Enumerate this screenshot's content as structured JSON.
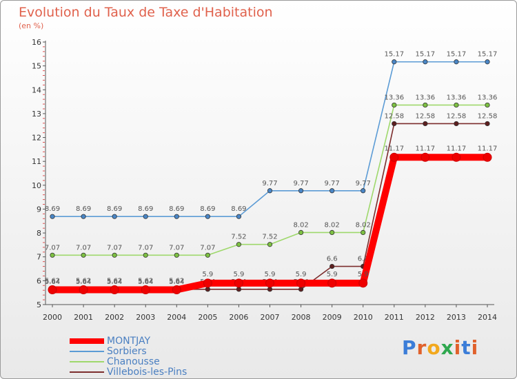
{
  "header": {
    "title": "Evolution du Taux de Taxe d'Habitation",
    "subtitle": "(en %)"
  },
  "logo": {
    "text": "Proxiti",
    "letters": [
      "P",
      "r",
      "o",
      "x",
      "i",
      "t",
      "i"
    ],
    "colors": [
      "#3b7dd8",
      "#e0612b",
      "#f2a81d",
      "#2fa84f",
      "#e0612b",
      "#3b7dd8",
      "#e0612b"
    ]
  },
  "chart_data": {
    "type": "line",
    "title": "Evolution du Taux de Taxe d'Habitation",
    "subtitle": "(en %)",
    "xlabel": "",
    "ylabel": "",
    "ylim": [
      5,
      16
    ],
    "yticks": [
      5,
      6,
      7,
      8,
      9,
      10,
      11,
      12,
      13,
      14,
      15,
      16
    ],
    "x": [
      "2000",
      "2001",
      "2002",
      "2003",
      "2004",
      "2005",
      "2006",
      "2007",
      "2008",
      "2009",
      "2010",
      "2011",
      "2012",
      "2013",
      "2014"
    ],
    "grid": false,
    "legend_position": "bottom-left",
    "series": [
      {
        "name": "Sorbiers",
        "color": "#5b9bd5",
        "point_color": "#4a86c6",
        "values": [
          8.69,
          8.69,
          8.69,
          8.69,
          8.69,
          8.69,
          8.69,
          9.77,
          9.77,
          9.77,
          9.77,
          15.17,
          15.17,
          15.17,
          15.17
        ],
        "labels": [
          "8.69",
          "8.69",
          "8.69",
          "8.69",
          "8.69",
          "8.69",
          "8.69",
          "9.77",
          "9.77",
          "9.77",
          "9.77",
          "15.17",
          "15.17",
          "15.17",
          "15.17"
        ]
      },
      {
        "name": "Chanousse",
        "color": "#9ed86b",
        "point_color": "#7dc142",
        "values": [
          7.07,
          7.07,
          7.07,
          7.07,
          7.07,
          7.07,
          7.52,
          7.52,
          8.02,
          8.02,
          8.02,
          13.36,
          13.36,
          13.36,
          13.36
        ],
        "labels": [
          "7.07",
          "7.07",
          "7.07",
          "7.07",
          "7.07",
          "7.07",
          "7.52",
          "7.52",
          "8.02",
          "8.02",
          "8.02",
          "13.36",
          "13.36",
          "13.36",
          "13.36"
        ]
      },
      {
        "name": "Villebois-les-Pins",
        "color": "#7b2c2c",
        "point_color": "#5e1f1f",
        "values": [
          5.64,
          5.64,
          5.64,
          5.64,
          5.64,
          5.64,
          5.64,
          5.64,
          5.64,
          6.6,
          6.6,
          12.58,
          12.58,
          12.58,
          12.58
        ],
        "labels": [
          "5.64",
          "5.64",
          "5.64",
          "5.64",
          "5.64",
          "5.64",
          "5.64",
          "5.64",
          "5.64",
          "6.6",
          "6.6",
          "12.58",
          "12.58",
          "12.58",
          "12.58"
        ]
      },
      {
        "name": "MONTJAY",
        "color": "#ff0000",
        "point_color": "#ee0000",
        "thick": true,
        "values": [
          5.62,
          5.62,
          5.62,
          5.62,
          5.62,
          5.9,
          5.9,
          5.9,
          5.9,
          5.9,
          5.9,
          11.17,
          11.17,
          11.17,
          11.17
        ],
        "labels": [
          "5.62",
          "5.62",
          "5.62",
          "5.62",
          "5.62",
          "5.9",
          "5.9",
          "5.9",
          "5.9",
          "5.9",
          "5.9",
          "11.17",
          "11.17",
          "11.17",
          "11.17"
        ]
      }
    ],
    "legend": [
      "MONTJAY",
      "Sorbiers",
      "Chanousse",
      "Villebois-les-Pins"
    ]
  }
}
